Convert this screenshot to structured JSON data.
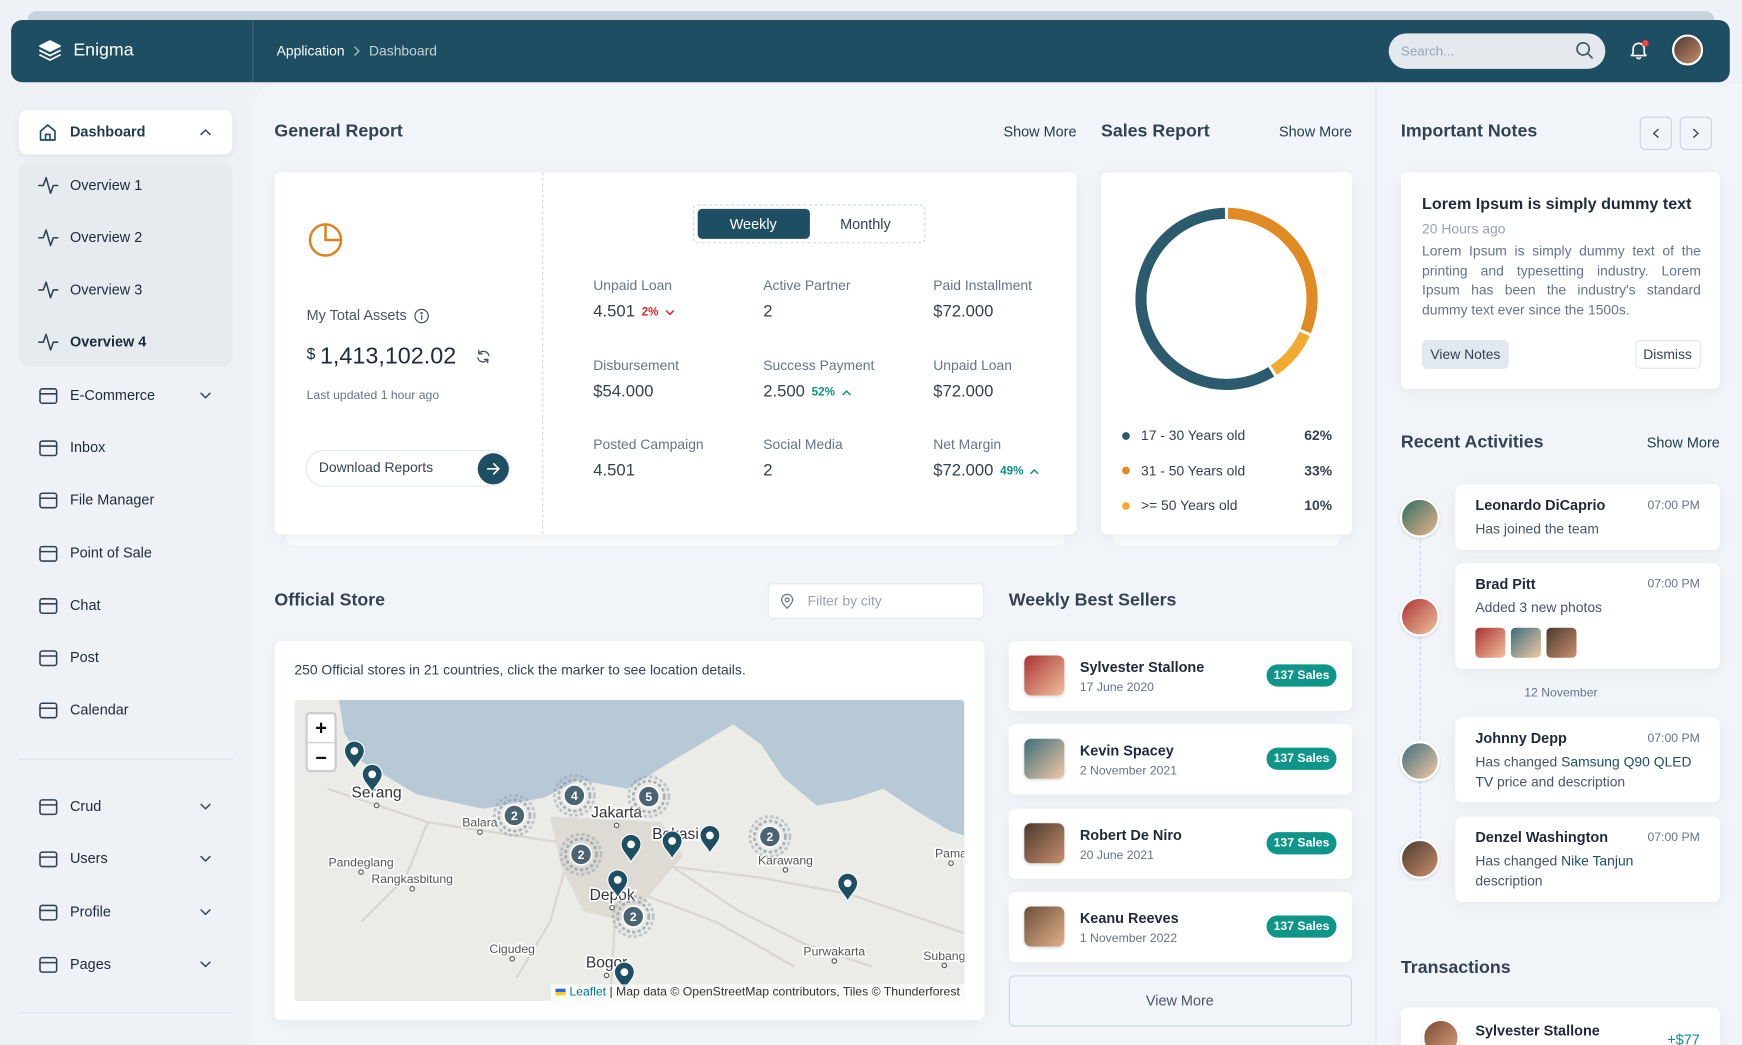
{
  "header": {
    "brand": "Enigma",
    "breadcrumb": [
      "Application",
      "Dashboard"
    ],
    "search_placeholder": "Search..."
  },
  "sidebar": {
    "active": "Dashboard",
    "submenu": [
      "Overview 1",
      "Overview 2",
      "Overview 3",
      "Overview 4"
    ],
    "menu": [
      "E-Commerce",
      "Inbox",
      "File Manager",
      "Point of Sale",
      "Chat",
      "Post",
      "Calendar"
    ],
    "menu2": [
      "Crud",
      "Users",
      "Profile",
      "Pages"
    ]
  },
  "general_report": {
    "title": "General Report",
    "show_more": "Show More",
    "assets_label": "My Total Assets",
    "currency": "$",
    "assets_value": "1,413,102.02",
    "last_updated": "Last updated 1 hour ago",
    "download": "Download Reports",
    "tabs": [
      "Weekly",
      "Monthly"
    ],
    "stats": [
      {
        "label": "Unpaid Loan",
        "value": "4.501",
        "change": "2%",
        "trend": "down"
      },
      {
        "label": "Active Partner",
        "value": "2"
      },
      {
        "label": "Paid Installment",
        "value": "$72.000"
      },
      {
        "label": "Disbursement",
        "value": "$54.000"
      },
      {
        "label": "Success Payment",
        "value": "2.500",
        "change": "52%",
        "trend": "up"
      },
      {
        "label": "Unpaid Loan",
        "value": "$72.000"
      },
      {
        "label": "Posted Campaign",
        "value": "4.501"
      },
      {
        "label": "Social Media",
        "value": "2"
      },
      {
        "label": "Net Margin",
        "value": "$72.000",
        "change": "49%",
        "trend": "up"
      }
    ]
  },
  "sales_report": {
    "title": "Sales Report",
    "show_more": "Show More",
    "segments": [
      {
        "label": "17 - 30 Years old",
        "value": 62,
        "value_label": "62%",
        "color": "#2d5b6e"
      },
      {
        "label": "31 - 50 Years old",
        "value": 33,
        "value_label": "33%",
        "color": "#e08a23"
      },
      {
        "label": ">= 50 Years old",
        "value": 10,
        "value_label": "10%",
        "color": "#f3aa33"
      }
    ]
  },
  "important_notes": {
    "title": "Important Notes",
    "note_title": "Lorem Ipsum is simply dummy text",
    "time": "20 Hours ago",
    "body": "Lorem Ipsum is simply dummy text of the printing and typesetting industry. Lorem Ipsum has been the industry's standard dummy text ever since the 1500s.",
    "view": "View Notes",
    "dismiss": "Dismiss"
  },
  "recent_activities": {
    "title": "Recent Activities",
    "show_more": "Show More",
    "separator": "12 November",
    "items": [
      {
        "name": "Leonardo DiCaprio",
        "time": "07:00 PM",
        "text": "Has joined the team"
      },
      {
        "name": "Brad Pitt",
        "time": "07:00 PM",
        "text": "Added 3 new photos"
      },
      {
        "name": "Johnny Depp",
        "time": "07:00 PM",
        "text": "Has changed",
        "link": "Samsung Q90 QLED TV",
        "text_after": "price and description"
      },
      {
        "name": "Denzel Washington",
        "time": "07:00 PM",
        "text": "Has changed",
        "link": "Nike Tanjun",
        "text_after": "description"
      }
    ]
  },
  "transactions": {
    "title": "Transactions",
    "items": [
      {
        "name": "Sylvester Stallone",
        "amount": "+$77"
      }
    ]
  },
  "official_store": {
    "title": "Official Store",
    "filter_placeholder": "Filter by city",
    "description": "250 Official stores in 21 countries, click the marker to see location details.",
    "map": {
      "zoom_in": "+",
      "zoom_out": "−",
      "places": [
        "Serang",
        "Jakarta",
        "Bekasi",
        "Depok",
        "Bogor",
        "Karawang",
        "Pandeglang",
        "Rangkasbitung",
        "Balara",
        "Cigudeg",
        "Purwakarta",
        "Subang",
        "Pama"
      ],
      "clusters": [
        2,
        4,
        5,
        2,
        2,
        2
      ],
      "attribution_link": "Leaflet",
      "attribution": "| Map data © OpenStreetMap contributors, Tiles © Thunderforest"
    }
  },
  "best_sellers": {
    "title": "Weekly Best Sellers",
    "view_more": "View More",
    "items": [
      {
        "name": "Sylvester Stallone",
        "date": "17 June 2020",
        "badge": "137 Sales"
      },
      {
        "name": "Kevin Spacey",
        "date": "2 November 2021",
        "badge": "137 Sales"
      },
      {
        "name": "Robert De Niro",
        "date": "20 June 2021",
        "badge": "137 Sales"
      },
      {
        "name": "Keanu Reeves",
        "date": "1 November 2022",
        "badge": "137 Sales"
      }
    ]
  }
}
